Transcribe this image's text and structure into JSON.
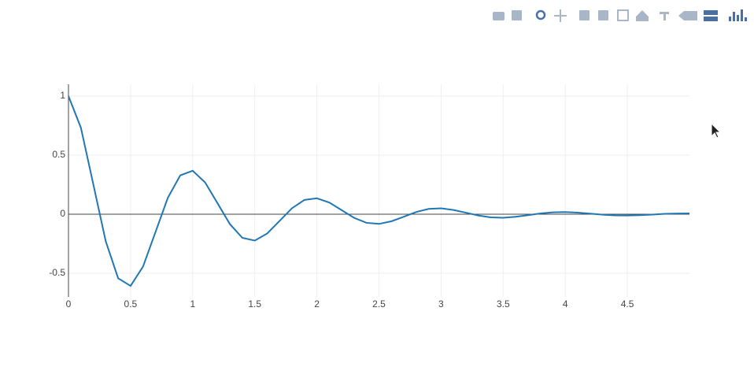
{
  "chart_data": {
    "type": "line",
    "x": [
      0,
      0.1,
      0.2,
      0.3,
      0.4,
      0.5,
      0.6,
      0.7,
      0.8,
      0.9,
      1,
      1.1,
      1.2,
      1.3,
      1.4,
      1.5,
      1.6,
      1.7,
      1.8,
      1.9,
      2,
      2.1,
      2.2,
      2.3,
      2.4,
      2.5,
      2.6,
      2.7,
      2.8,
      2.9,
      3,
      3.1,
      3.2,
      3.3,
      3.4,
      3.5,
      3.6,
      3.7,
      3.8,
      3.9,
      4,
      4.1,
      4.2,
      4.3,
      4.4,
      4.5,
      4.6,
      4.7,
      4.8,
      4.9,
      5
    ],
    "series": [
      {
        "color": "#1f77b4",
        "values": [
          1,
          0.732,
          0.253,
          -0.229,
          -0.542,
          -0.607,
          -0.444,
          -0.153,
          0.139,
          0.329,
          0.368,
          0.269,
          0.093,
          -0.084,
          -0.2,
          -0.223,
          -0.163,
          -0.056,
          0.051,
          0.121,
          0.135,
          0.099,
          0.034,
          -0.031,
          -0.073,
          -0.082,
          -0.06,
          -0.021,
          0.019,
          0.045,
          0.05,
          0.036,
          0.013,
          -0.011,
          -0.027,
          -0.03,
          -0.022,
          -0.008,
          0.007,
          0.016,
          0.018,
          0.013,
          0.005,
          -0.004,
          -0.01,
          -0.011,
          -0.008,
          -0.003,
          0.003,
          0.006,
          0.007
        ]
      }
    ],
    "xlim": [
      0,
      5
    ],
    "ylim": [
      -0.7,
      1.1
    ],
    "xticks": [
      0,
      0.5,
      1,
      1.5,
      2,
      2.5,
      3,
      3.5,
      4,
      4.5
    ],
    "yticks": [
      -0.5,
      0,
      0.5,
      1
    ],
    "grid": true,
    "zeroline": true
  }
}
